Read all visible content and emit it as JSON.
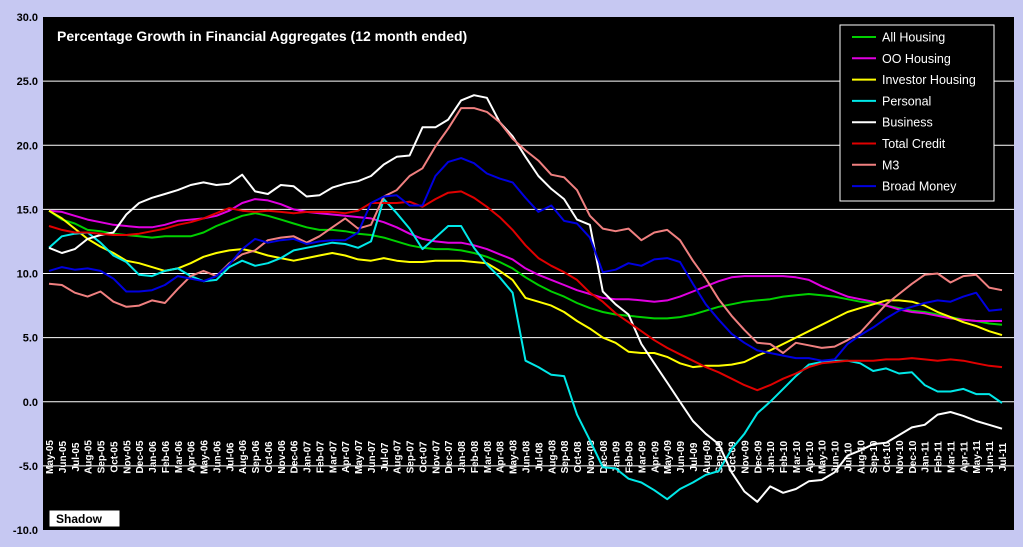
{
  "chart_data": {
    "type": "line",
    "title": "Percentage Growth in Financial Aggregates (12 month ended)",
    "xlabel": "",
    "ylabel": "",
    "ylim": [
      -10,
      30
    ],
    "yticks": [
      "30.0",
      "25.0",
      "20.0",
      "15.0",
      "10.0",
      "5.0",
      "0.0",
      "-5.0",
      "-10.0"
    ],
    "ytick_values": [
      30,
      25,
      20,
      15,
      10,
      5,
      0,
      -5,
      -10
    ],
    "categories": [
      "May-05",
      "Jun-05",
      "Jul-05",
      "Aug-05",
      "Sep-05",
      "Oct-05",
      "Nov-05",
      "Dec-05",
      "Jan-06",
      "Feb-06",
      "Mar-06",
      "Apr-06",
      "May-06",
      "Jun-06",
      "Jul-06",
      "Aug-06",
      "Sep-06",
      "Oct-06",
      "Nov-06",
      "Dec-06",
      "Jan-07",
      "Feb-07",
      "Mar-07",
      "Apr-07",
      "May-07",
      "Jun-07",
      "Jul-07",
      "Aug-07",
      "Sep-07",
      "Oct-07",
      "Nov-07",
      "Dec-07",
      "Jan-08",
      "Feb-08",
      "Mar-08",
      "Apr-08",
      "May-08",
      "Jun-08",
      "Jul-08",
      "Aug-08",
      "Sep-08",
      "Oct-08",
      "Nov-08",
      "Dec-08",
      "Jan-09",
      "Feb-09",
      "Mar-09",
      "Apr-09",
      "May-09",
      "Jun-09",
      "Jul-09",
      "Aug-09",
      "Sep-09",
      "Oct-09",
      "Nov-09",
      "Dec-09",
      "Jan-10",
      "Feb-10",
      "Mar-10",
      "Apr-10",
      "May-10",
      "Jun-10",
      "Jul-10",
      "Aug-10",
      "Sep-10",
      "Oct-10",
      "Nov-10",
      "Dec-10",
      "Jan-11",
      "Feb-11",
      "Mar-11",
      "Apr-11",
      "May-11",
      "Jun-11",
      "Jul-11"
    ],
    "grid": true,
    "legend_position": "top-right",
    "annotation": "Shadow",
    "series": [
      {
        "name": "All Housing",
        "color": "#00d000",
        "values": [
          14.9,
          14.2,
          13.9,
          13.4,
          13.3,
          13.1,
          13.0,
          12.9,
          12.8,
          12.9,
          12.9,
          12.9,
          13.2,
          13.7,
          14.1,
          14.5,
          14.7,
          14.5,
          14.2,
          13.9,
          13.6,
          13.4,
          13.4,
          13.3,
          13.1,
          13.0,
          12.8,
          12.5,
          12.2,
          12.0,
          11.9,
          11.9,
          11.8,
          11.6,
          11.3,
          10.9,
          10.4,
          9.7,
          9.1,
          8.6,
          8.2,
          7.7,
          7.3,
          7.0,
          6.8,
          6.7,
          6.6,
          6.5,
          6.5,
          6.6,
          6.8,
          7.1,
          7.4,
          7.6,
          7.8,
          7.9,
          8.0,
          8.2,
          8.3,
          8.4,
          8.3,
          8.2,
          8.0,
          7.8,
          7.7,
          7.5,
          7.3,
          7.1,
          7.0,
          6.8,
          6.6,
          6.4,
          6.3,
          6.1,
          6.0
        ]
      },
      {
        "name": "OO Housing",
        "color": "#e000e0",
        "values": [
          14.9,
          14.8,
          14.5,
          14.2,
          14.0,
          13.8,
          13.7,
          13.6,
          13.6,
          13.8,
          14.1,
          14.2,
          14.3,
          14.5,
          14.9,
          15.5,
          15.8,
          15.7,
          15.4,
          15.0,
          14.8,
          14.7,
          14.6,
          14.5,
          14.4,
          14.3,
          14.0,
          13.6,
          13.1,
          12.7,
          12.5,
          12.4,
          12.4,
          12.2,
          11.9,
          11.5,
          11.1,
          10.4,
          9.9,
          9.5,
          9.1,
          8.7,
          8.4,
          8.1,
          8.0,
          8.0,
          7.9,
          7.8,
          7.9,
          8.2,
          8.6,
          9.0,
          9.4,
          9.7,
          9.8,
          9.8,
          9.8,
          9.8,
          9.7,
          9.5,
          9.0,
          8.6,
          8.2,
          8.0,
          7.8,
          7.5,
          7.2,
          7.0,
          6.9,
          6.7,
          6.5,
          6.4,
          6.3,
          6.3,
          6.3
        ]
      },
      {
        "name": "Investor Housing",
        "color": "#ffff00",
        "values": [
          14.9,
          14.3,
          13.5,
          12.7,
          12.1,
          11.6,
          11.0,
          10.8,
          10.5,
          10.2,
          10.4,
          10.8,
          11.3,
          11.6,
          11.8,
          11.9,
          11.7,
          11.4,
          11.2,
          11.0,
          11.2,
          11.4,
          11.6,
          11.4,
          11.1,
          11.0,
          11.2,
          11.0,
          10.9,
          10.9,
          11.0,
          11.0,
          11.0,
          10.9,
          10.8,
          10.2,
          9.5,
          8.1,
          7.8,
          7.5,
          7.0,
          6.3,
          5.7,
          5.0,
          4.6,
          3.9,
          3.8,
          3.8,
          3.5,
          3.0,
          2.7,
          2.8,
          2.8,
          2.9,
          3.1,
          3.6,
          4.0,
          4.5,
          5.0,
          5.5,
          6.0,
          6.5,
          7.0,
          7.3,
          7.6,
          7.9,
          7.9,
          7.8,
          7.5,
          7.0,
          6.6,
          6.2,
          5.9,
          5.5,
          5.2
        ]
      },
      {
        "name": "Personal",
        "color": "#00e8e8",
        "values": [
          12.0,
          12.9,
          13.1,
          13.2,
          12.4,
          11.4,
          10.9,
          9.9,
          9.8,
          10.2,
          10.4,
          9.8,
          9.4,
          9.5,
          10.5,
          11.0,
          10.6,
          10.8,
          11.2,
          11.8,
          12.0,
          12.2,
          12.4,
          12.3,
          12.0,
          12.5,
          15.8,
          14.7,
          13.5,
          11.9,
          12.8,
          13.7,
          13.7,
          12.0,
          10.7,
          9.7,
          8.5,
          3.2,
          2.7,
          2.1,
          2.0,
          -1.0,
          -3.0,
          -5.1,
          -5.2,
          -6.0,
          -6.3,
          -6.9,
          -7.6,
          -6.8,
          -6.3,
          -5.7,
          -5.4,
          -3.7,
          -2.5,
          -0.9,
          0.0,
          1.0,
          2.0,
          2.9,
          3.1,
          3.2,
          3.2,
          3.0,
          2.4,
          2.6,
          2.2,
          2.3,
          1.3,
          0.8,
          0.8,
          1.0,
          0.6,
          0.6,
          -0.1
        ]
      },
      {
        "name": "Business",
        "color": "#ffffff",
        "values": [
          12.0,
          11.6,
          11.9,
          12.7,
          13.0,
          13.2,
          14.6,
          15.5,
          15.9,
          16.2,
          16.5,
          16.9,
          17.1,
          16.9,
          17.0,
          17.7,
          16.4,
          16.2,
          16.9,
          16.8,
          16.0,
          16.1,
          16.7,
          17.0,
          17.2,
          17.6,
          18.5,
          19.1,
          19.2,
          21.4,
          21.4,
          22.0,
          23.5,
          23.9,
          23.7,
          21.8,
          20.7,
          19.1,
          17.6,
          16.6,
          15.8,
          14.2,
          13.8,
          8.6,
          7.6,
          6.8,
          4.5,
          3.0,
          1.5,
          0.0,
          -1.5,
          -2.5,
          -3.3,
          -5.5,
          -7.0,
          -7.8,
          -6.6,
          -7.1,
          -6.8,
          -6.2,
          -6.1,
          -5.5,
          -4.2,
          -3.8,
          -3.3,
          -3.2,
          -2.6,
          -2.0,
          -1.8,
          -1.0,
          -0.8,
          -1.1,
          -1.5,
          -1.8,
          -2.1
        ]
      },
      {
        "name": "Total Credit",
        "color": "#e00000",
        "values": [
          13.7,
          13.4,
          13.2,
          13.2,
          13.1,
          13.0,
          13.0,
          13.1,
          13.3,
          13.5,
          13.8,
          14.0,
          14.3,
          14.7,
          15.1,
          14.9,
          14.8,
          14.9,
          14.8,
          14.7,
          14.8,
          14.8,
          14.8,
          14.7,
          14.9,
          15.5,
          15.5,
          15.5,
          15.6,
          15.2,
          15.8,
          16.3,
          16.4,
          15.9,
          15.2,
          14.4,
          13.4,
          12.2,
          11.2,
          10.6,
          10.1,
          9.5,
          8.5,
          7.8,
          6.9,
          6.2,
          5.5,
          4.8,
          4.2,
          3.7,
          3.2,
          2.7,
          2.3,
          1.8,
          1.3,
          0.9,
          1.3,
          1.8,
          2.2,
          2.7,
          3.0,
          3.1,
          3.2,
          3.2,
          3.2,
          3.3,
          3.3,
          3.4,
          3.3,
          3.2,
          3.3,
          3.2,
          3.0,
          2.8,
          2.7
        ]
      },
      {
        "name": "M3",
        "color": "#f08080",
        "values": [
          9.2,
          9.1,
          8.5,
          8.2,
          8.6,
          7.8,
          7.4,
          7.5,
          7.9,
          7.7,
          8.8,
          9.8,
          10.2,
          9.8,
          10.8,
          11.5,
          11.8,
          12.6,
          12.8,
          12.9,
          12.4,
          12.9,
          13.6,
          14.3,
          13.5,
          13.8,
          16.0,
          16.5,
          17.6,
          18.2,
          19.9,
          21.3,
          22.9,
          22.9,
          22.6,
          21.8,
          20.5,
          19.6,
          18.8,
          17.7,
          17.5,
          16.5,
          14.5,
          13.5,
          13.3,
          13.5,
          12.6,
          13.2,
          13.4,
          12.6,
          11.0,
          9.6,
          8.0,
          6.7,
          5.6,
          4.6,
          4.5,
          3.8,
          4.6,
          4.4,
          4.2,
          4.3,
          4.8,
          5.4,
          6.5,
          7.6,
          8.4,
          9.2,
          9.9,
          10.0,
          9.3,
          9.8,
          9.9,
          8.9,
          8.7
        ]
      },
      {
        "name": "Broad Money",
        "color": "#0000e0",
        "values": [
          10.2,
          10.5,
          10.3,
          10.4,
          10.2,
          9.6,
          8.6,
          8.6,
          8.7,
          9.1,
          9.8,
          9.6,
          9.4,
          9.8,
          10.7,
          11.9,
          12.7,
          12.4,
          12.6,
          12.7,
          12.3,
          12.5,
          12.6,
          12.6,
          13.2,
          15.5,
          16.0,
          16.1,
          15.3,
          15.3,
          17.6,
          18.7,
          19.0,
          18.6,
          17.8,
          17.4,
          17.1,
          15.9,
          14.8,
          15.3,
          14.1,
          13.9,
          12.8,
          10.1,
          10.3,
          10.8,
          10.6,
          11.1,
          11.2,
          10.9,
          9.2,
          7.6,
          6.4,
          5.3,
          4.6,
          4.0,
          3.8,
          3.6,
          3.4,
          3.4,
          3.2,
          3.3,
          4.5,
          5.2,
          5.8,
          6.5,
          7.1,
          7.4,
          7.7,
          7.9,
          7.8,
          8.2,
          8.5,
          7.1,
          7.2
        ]
      }
    ]
  }
}
